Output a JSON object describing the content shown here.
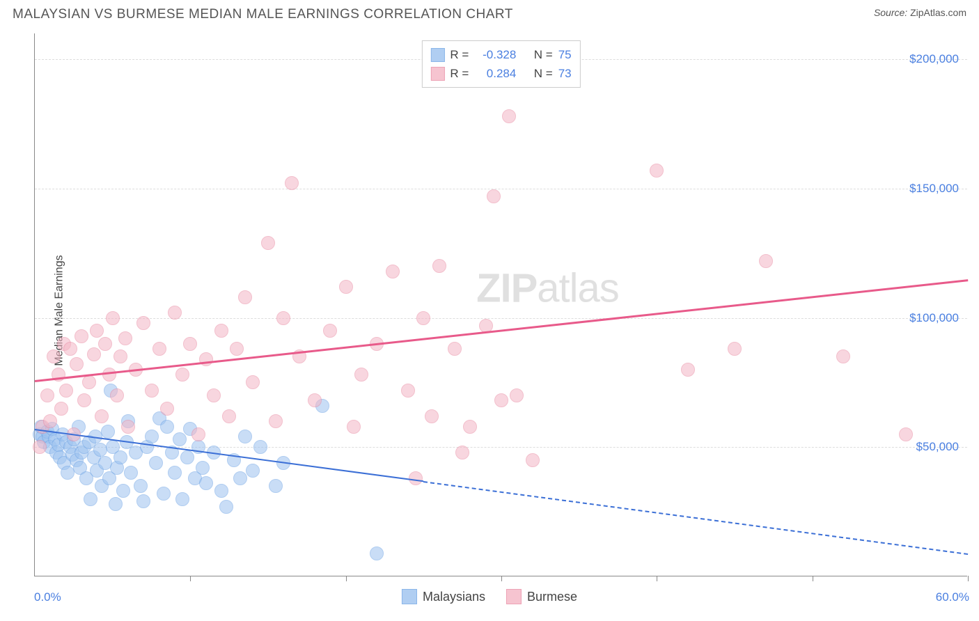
{
  "header": {
    "title": "MALAYSIAN VS BURMESE MEDIAN MALE EARNINGS CORRELATION CHART",
    "source_label": "Source:",
    "source_value": "ZipAtlas.com"
  },
  "chart": {
    "type": "scatter",
    "y_axis_label": "Median Male Earnings",
    "watermark_bold": "ZIP",
    "watermark_light": "atlas",
    "background_color": "#ffffff",
    "grid_color": "#dddddd",
    "axis_color": "#888888",
    "x_axis": {
      "min": 0.0,
      "max": 60.0,
      "min_label": "0.0%",
      "max_label": "60.0%",
      "tick_positions_pct": [
        0,
        10,
        20,
        30,
        40,
        50,
        60
      ],
      "label_color": "#4a7fe0",
      "label_fontsize": 17
    },
    "y_axis": {
      "min": 0,
      "max": 210000,
      "ticks": [
        {
          "value": 50000,
          "label": "$50,000"
        },
        {
          "value": 100000,
          "label": "$100,000"
        },
        {
          "value": 150000,
          "label": "$150,000"
        },
        {
          "value": 200000,
          "label": "$200,000"
        }
      ],
      "label_color": "#4a7fe0",
      "label_fontsize": 17
    },
    "series": [
      {
        "name": "Malaysians",
        "fill_color": "#9dc3f0",
        "fill_opacity": 0.55,
        "stroke_color": "#6fa4e4",
        "marker_radius": 10,
        "trend": {
          "color": "#3b6fd6",
          "width": 2,
          "x1_pct": 0.0,
          "y1": 57000,
          "x_solid_end_pct": 25.0,
          "y_solid_end": 37000,
          "x2_pct": 60.0,
          "y2": 9000
        },
        "stats": {
          "R_label": "R =",
          "R_value": "-0.328",
          "N_label": "N =",
          "N_value": "75"
        },
        "points": [
          {
            "x": 0.3,
            "y": 55000
          },
          {
            "x": 0.4,
            "y": 58000
          },
          {
            "x": 0.5,
            "y": 54000
          },
          {
            "x": 0.6,
            "y": 52000
          },
          {
            "x": 0.8,
            "y": 56000
          },
          {
            "x": 0.9,
            "y": 54000
          },
          {
            "x": 1.0,
            "y": 50000
          },
          {
            "x": 1.1,
            "y": 57000
          },
          {
            "x": 1.3,
            "y": 53000
          },
          {
            "x": 1.4,
            "y": 48000
          },
          {
            "x": 1.5,
            "y": 51000
          },
          {
            "x": 1.6,
            "y": 46000
          },
          {
            "x": 1.8,
            "y": 55000
          },
          {
            "x": 1.9,
            "y": 44000
          },
          {
            "x": 2.0,
            "y": 52000
          },
          {
            "x": 2.1,
            "y": 40000
          },
          {
            "x": 2.3,
            "y": 50000
          },
          {
            "x": 2.4,
            "y": 47000
          },
          {
            "x": 2.5,
            "y": 53000
          },
          {
            "x": 2.7,
            "y": 45000
          },
          {
            "x": 2.8,
            "y": 58000
          },
          {
            "x": 2.9,
            "y": 42000
          },
          {
            "x": 3.0,
            "y": 48000
          },
          {
            "x": 3.2,
            "y": 50000
          },
          {
            "x": 3.3,
            "y": 38000
          },
          {
            "x": 3.5,
            "y": 52000
          },
          {
            "x": 3.6,
            "y": 30000
          },
          {
            "x": 3.8,
            "y": 46000
          },
          {
            "x": 3.9,
            "y": 54000
          },
          {
            "x": 4.0,
            "y": 41000
          },
          {
            "x": 4.2,
            "y": 49000
          },
          {
            "x": 4.3,
            "y": 35000
          },
          {
            "x": 4.5,
            "y": 44000
          },
          {
            "x": 4.7,
            "y": 56000
          },
          {
            "x": 4.8,
            "y": 38000
          },
          {
            "x": 4.9,
            "y": 72000
          },
          {
            "x": 5.0,
            "y": 50000
          },
          {
            "x": 5.2,
            "y": 28000
          },
          {
            "x": 5.3,
            "y": 42000
          },
          {
            "x": 5.5,
            "y": 46000
          },
          {
            "x": 5.7,
            "y": 33000
          },
          {
            "x": 5.9,
            "y": 52000
          },
          {
            "x": 6.0,
            "y": 60000
          },
          {
            "x": 6.2,
            "y": 40000
          },
          {
            "x": 6.5,
            "y": 48000
          },
          {
            "x": 6.8,
            "y": 35000
          },
          {
            "x": 7.0,
            "y": 29000
          },
          {
            "x": 7.2,
            "y": 50000
          },
          {
            "x": 7.5,
            "y": 54000
          },
          {
            "x": 7.8,
            "y": 44000
          },
          {
            "x": 8.0,
            "y": 61000
          },
          {
            "x": 8.3,
            "y": 32000
          },
          {
            "x": 8.5,
            "y": 58000
          },
          {
            "x": 8.8,
            "y": 48000
          },
          {
            "x": 9.0,
            "y": 40000
          },
          {
            "x": 9.3,
            "y": 53000
          },
          {
            "x": 9.5,
            "y": 30000
          },
          {
            "x": 9.8,
            "y": 46000
          },
          {
            "x": 10.0,
            "y": 57000
          },
          {
            "x": 10.3,
            "y": 38000
          },
          {
            "x": 10.5,
            "y": 50000
          },
          {
            "x": 10.8,
            "y": 42000
          },
          {
            "x": 11.0,
            "y": 36000
          },
          {
            "x": 11.5,
            "y": 48000
          },
          {
            "x": 12.0,
            "y": 33000
          },
          {
            "x": 12.3,
            "y": 27000
          },
          {
            "x": 12.8,
            "y": 45000
          },
          {
            "x": 13.2,
            "y": 38000
          },
          {
            "x": 13.5,
            "y": 54000
          },
          {
            "x": 14.0,
            "y": 41000
          },
          {
            "x": 14.5,
            "y": 50000
          },
          {
            "x": 15.5,
            "y": 35000
          },
          {
            "x": 16.0,
            "y": 44000
          },
          {
            "x": 18.5,
            "y": 66000
          },
          {
            "x": 22.0,
            "y": 9000
          }
        ]
      },
      {
        "name": "Burmese",
        "fill_color": "#f4b6c5",
        "fill_opacity": 0.55,
        "stroke_color": "#e98ba3",
        "marker_radius": 10,
        "trend": {
          "color": "#e85a8a",
          "width": 2.5,
          "x1_pct": 0.0,
          "y1": 76000,
          "x_solid_end_pct": 60.0,
          "y_solid_end": 115000,
          "x2_pct": 60.0,
          "y2": 115000
        },
        "stats": {
          "R_label": "R =",
          "R_value": "0.284",
          "N_label": "N =",
          "N_value": "73"
        },
        "points": [
          {
            "x": 0.3,
            "y": 50000
          },
          {
            "x": 0.5,
            "y": 58000
          },
          {
            "x": 0.8,
            "y": 70000
          },
          {
            "x": 1.0,
            "y": 60000
          },
          {
            "x": 1.2,
            "y": 85000
          },
          {
            "x": 1.5,
            "y": 78000
          },
          {
            "x": 1.7,
            "y": 65000
          },
          {
            "x": 1.9,
            "y": 90000
          },
          {
            "x": 2.0,
            "y": 72000
          },
          {
            "x": 2.3,
            "y": 88000
          },
          {
            "x": 2.5,
            "y": 55000
          },
          {
            "x": 2.7,
            "y": 82000
          },
          {
            "x": 3.0,
            "y": 93000
          },
          {
            "x": 3.2,
            "y": 68000
          },
          {
            "x": 3.5,
            "y": 75000
          },
          {
            "x": 3.8,
            "y": 86000
          },
          {
            "x": 4.0,
            "y": 95000
          },
          {
            "x": 4.3,
            "y": 62000
          },
          {
            "x": 4.5,
            "y": 90000
          },
          {
            "x": 4.8,
            "y": 78000
          },
          {
            "x": 5.0,
            "y": 100000
          },
          {
            "x": 5.3,
            "y": 70000
          },
          {
            "x": 5.5,
            "y": 85000
          },
          {
            "x": 5.8,
            "y": 92000
          },
          {
            "x": 6.0,
            "y": 58000
          },
          {
            "x": 6.5,
            "y": 80000
          },
          {
            "x": 7.0,
            "y": 98000
          },
          {
            "x": 7.5,
            "y": 72000
          },
          {
            "x": 8.0,
            "y": 88000
          },
          {
            "x": 8.5,
            "y": 65000
          },
          {
            "x": 9.0,
            "y": 102000
          },
          {
            "x": 9.5,
            "y": 78000
          },
          {
            "x": 10.0,
            "y": 90000
          },
          {
            "x": 10.5,
            "y": 55000
          },
          {
            "x": 11.0,
            "y": 84000
          },
          {
            "x": 11.5,
            "y": 70000
          },
          {
            "x": 12.0,
            "y": 95000
          },
          {
            "x": 12.5,
            "y": 62000
          },
          {
            "x": 13.0,
            "y": 88000
          },
          {
            "x": 13.5,
            "y": 108000
          },
          {
            "x": 14.0,
            "y": 75000
          },
          {
            "x": 15.0,
            "y": 129000
          },
          {
            "x": 15.5,
            "y": 60000
          },
          {
            "x": 16.0,
            "y": 100000
          },
          {
            "x": 16.5,
            "y": 152000
          },
          {
            "x": 17.0,
            "y": 85000
          },
          {
            "x": 18.0,
            "y": 68000
          },
          {
            "x": 19.0,
            "y": 95000
          },
          {
            "x": 20.0,
            "y": 112000
          },
          {
            "x": 20.5,
            "y": 58000
          },
          {
            "x": 21.0,
            "y": 78000
          },
          {
            "x": 22.0,
            "y": 90000
          },
          {
            "x": 23.0,
            "y": 118000
          },
          {
            "x": 24.0,
            "y": 72000
          },
          {
            "x": 24.5,
            "y": 38000
          },
          {
            "x": 25.0,
            "y": 100000
          },
          {
            "x": 25.5,
            "y": 62000
          },
          {
            "x": 26.0,
            "y": 120000
          },
          {
            "x": 27.0,
            "y": 88000
          },
          {
            "x": 27.5,
            "y": 48000
          },
          {
            "x": 28.0,
            "y": 58000
          },
          {
            "x": 29.0,
            "y": 97000
          },
          {
            "x": 29.5,
            "y": 147000
          },
          {
            "x": 30.0,
            "y": 68000
          },
          {
            "x": 30.5,
            "y": 178000
          },
          {
            "x": 31.0,
            "y": 70000
          },
          {
            "x": 32.0,
            "y": 45000
          },
          {
            "x": 40.0,
            "y": 157000
          },
          {
            "x": 42.0,
            "y": 80000
          },
          {
            "x": 45.0,
            "y": 88000
          },
          {
            "x": 47.0,
            "y": 122000
          },
          {
            "x": 52.0,
            "y": 85000
          },
          {
            "x": 56.0,
            "y": 55000
          }
        ]
      }
    ],
    "legend_bottom": {
      "items": [
        {
          "swatch_fill": "#9dc3f0",
          "swatch_stroke": "#6fa4e4",
          "label": "Malaysians"
        },
        {
          "swatch_fill": "#f4b6c5",
          "swatch_stroke": "#e98ba3",
          "label": "Burmese"
        }
      ]
    }
  }
}
